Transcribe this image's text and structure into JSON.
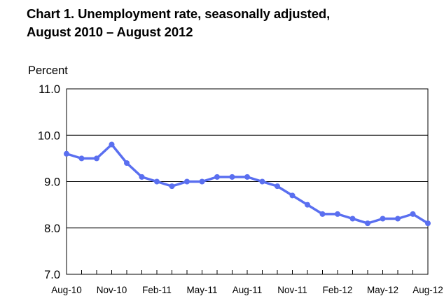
{
  "chart_data": {
    "type": "line",
    "title_line1": "Chart 1. Unemployment rate, seasonally adjusted,",
    "title_line2": "August 2010 – August 2012",
    "ylabel": "Percent",
    "ylim": [
      7.0,
      11.0
    ],
    "yticks": [
      "7.0",
      "8.0",
      "9.0",
      "10.0",
      "11.0"
    ],
    "xtick_labels": [
      "Aug-10",
      "Nov-10",
      "Feb-11",
      "May-11",
      "Aug-11",
      "Nov-11",
      "Feb-12",
      "May-12",
      "Aug-12"
    ],
    "x": [
      "Aug-10",
      "Sep-10",
      "Oct-10",
      "Nov-10",
      "Dec-10",
      "Jan-11",
      "Feb-11",
      "Mar-11",
      "Apr-11",
      "May-11",
      "Jun-11",
      "Jul-11",
      "Aug-11",
      "Sep-11",
      "Oct-11",
      "Nov-11",
      "Dec-11",
      "Jan-12",
      "Feb-12",
      "Mar-12",
      "Apr-12",
      "May-12",
      "Jun-12",
      "Jul-12",
      "Aug-12"
    ],
    "series": [
      {
        "values": [
          9.6,
          9.5,
          9.5,
          9.8,
          9.4,
          9.1,
          9.0,
          8.9,
          9.0,
          9.0,
          9.1,
          9.1,
          9.1,
          9.0,
          8.9,
          8.7,
          8.5,
          8.3,
          8.3,
          8.2,
          8.1,
          8.2,
          8.2,
          8.3,
          8.1
        ]
      }
    ],
    "line_color": "#5a6ff0",
    "grid": "horizontal"
  }
}
